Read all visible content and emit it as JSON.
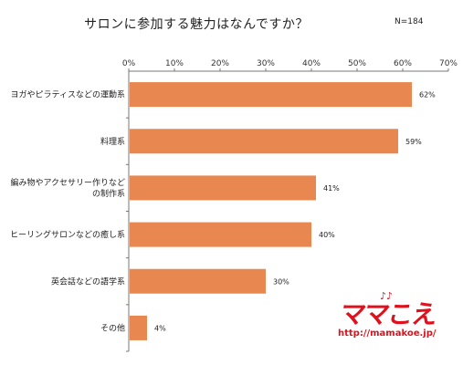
{
  "chart_data": {
    "type": "bar",
    "orientation": "horizontal",
    "title": "サロンに参加する魅力はなんですか？",
    "sample_size": "N=184",
    "categories": [
      "ヨガやピラティスなどの運動系",
      "料理系",
      "編み物やアクセサリー作りなどの制作系",
      "ヒーリングサロンなどの癒し系",
      "英会話などの語学系",
      "その他"
    ],
    "category_lines": [
      [
        "ヨガやピラティスなどの運動系"
      ],
      [
        "料理系"
      ],
      [
        "編み物やアクセサリー作りなど",
        "の制作系"
      ],
      [
        "ヒーリングサロンなどの癒し系"
      ],
      [
        "英会話などの語学系"
      ],
      [
        "その他"
      ]
    ],
    "values": [
      62,
      59,
      41,
      40,
      30,
      4
    ],
    "value_labels": [
      "62%",
      "59%",
      "41%",
      "40%",
      "30%",
      "4%"
    ],
    "xlim": [
      0,
      70
    ],
    "xticks": [
      "0%",
      "10%",
      "20%",
      "30%",
      "40%",
      "50%",
      "60%",
      "70%"
    ],
    "grid": false,
    "bar_color": "#e8874f"
  },
  "logo": {
    "brand": "ママこえ",
    "note": "♪♪",
    "url": "http://mamakoe.jp/",
    "color": "#e0101c"
  }
}
